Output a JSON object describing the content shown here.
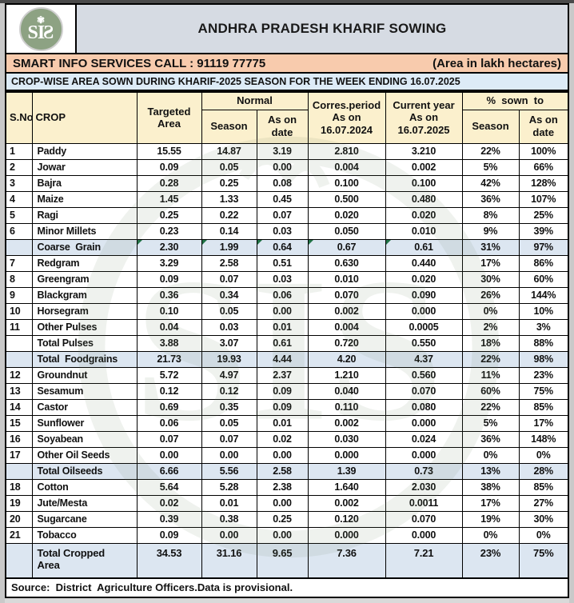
{
  "banner": {
    "title": "ANDHRA PRADESH KHARIF SOWING",
    "logo_text": "SI",
    "logo_text_flipped": "S",
    "logo_flower": "✾"
  },
  "info_bar": {
    "call_text": "SMART INFO SERVICES CALL : 91119 77775",
    "unit_text": "(Area in lakh hectares)"
  },
  "subtitle": "CROP-WISE AREA SOWN DURING KHARIF-2025 SEASON FOR THE WEEK ENDING 16.07.2025",
  "colors": {
    "banner_bg": "#d6dbe3",
    "info_bar_bg": "#f8cbad",
    "subtitle_bg": "#ddebf7",
    "header_bg": "#fbf0cd",
    "summary_row_bg": "#dce6f1",
    "logo_green": "#8da283",
    "flag_green": "#217346"
  },
  "table": {
    "headers": {
      "sno": "S.No",
      "crop": "CROP",
      "targeted": "Targeted\nArea",
      "normal": "Normal",
      "season": "Season",
      "as_on_date": "As on\ndate",
      "corres": "Corres.period\nAs on\n16.07.2024",
      "current": "Current year\nAs on\n16.07.2025",
      "pct_sown": "%  sown  to"
    },
    "rows": [
      {
        "sno": "1",
        "crop": "Paddy",
        "style": "data",
        "v": [
          "15.55",
          "14.87",
          "3.19",
          "2.810",
          "3.210",
          "22%",
          "100%"
        ]
      },
      {
        "sno": "2",
        "crop": "Jowar",
        "style": "data",
        "v": [
          "0.09",
          "0.05",
          "0.00",
          "0.004",
          "0.002",
          "5%",
          "66%"
        ]
      },
      {
        "sno": "3",
        "crop": "Bajra",
        "style": "data",
        "v": [
          "0.28",
          "0.25",
          "0.08",
          "0.100",
          "0.100",
          "42%",
          "128%"
        ]
      },
      {
        "sno": "4",
        "crop": "Maize",
        "style": "data",
        "v": [
          "1.45",
          "1.33",
          "0.45",
          "0.500",
          "0.480",
          "36%",
          "107%"
        ]
      },
      {
        "sno": "5",
        "crop": "Ragi",
        "style": "data",
        "v": [
          "0.25",
          "0.22",
          "0.07",
          "0.020",
          "0.020",
          "8%",
          "25%"
        ]
      },
      {
        "sno": "6",
        "crop": "Minor Millets",
        "style": "data",
        "v": [
          "0.23",
          "0.14",
          "0.03",
          "0.050",
          "0.010",
          "9%",
          "39%"
        ]
      },
      {
        "sno": "",
        "crop": "Coarse  Grain",
        "style": "blue",
        "tri": true,
        "v": [
          "2.30",
          "1.99",
          "0.64",
          "0.67",
          "0.61",
          "31%",
          "97%"
        ]
      },
      {
        "sno": "7",
        "crop": "Redgram",
        "style": "data",
        "v": [
          "3.29",
          "2.58",
          "0.51",
          "0.630",
          "0.440",
          "17%",
          "86%"
        ]
      },
      {
        "sno": "8",
        "crop": "Greengram",
        "style": "data",
        "v": [
          "0.09",
          "0.07",
          "0.03",
          "0.010",
          "0.020",
          "30%",
          "60%"
        ]
      },
      {
        "sno": "9",
        "crop": "Blackgram",
        "style": "data",
        "v": [
          "0.36",
          "0.34",
          "0.06",
          "0.070",
          "0.090",
          "26%",
          "144%"
        ]
      },
      {
        "sno": "10",
        "crop": "Horsegram",
        "style": "data",
        "v": [
          "0.10",
          "0.05",
          "0.00",
          "0.002",
          "0.000",
          "0%",
          "10%"
        ]
      },
      {
        "sno": "11",
        "crop": "Other Pulses",
        "style": "data",
        "v": [
          "0.04",
          "0.03",
          "0.01",
          "0.004",
          "0.0005",
          "2%",
          "3%"
        ]
      },
      {
        "sno": "",
        "crop": "Total Pulses",
        "style": "bold",
        "v": [
          "3.88",
          "3.07",
          "0.61",
          "0.720",
          "0.550",
          "18%",
          "88%"
        ]
      },
      {
        "sno": "",
        "crop": "Total  Foodgrains",
        "style": "blue",
        "v": [
          "21.73",
          "19.93",
          "4.44",
          "4.20",
          "4.37",
          "22%",
          "98%"
        ]
      },
      {
        "sno": "12",
        "crop": "Groundnut",
        "style": "data",
        "v": [
          "5.72",
          "4.97",
          "2.37",
          "1.210",
          "0.560",
          "11%",
          "23%"
        ]
      },
      {
        "sno": "13",
        "crop": "Sesamum",
        "style": "data",
        "v": [
          "0.12",
          "0.12",
          "0.09",
          "0.040",
          "0.070",
          "60%",
          "75%"
        ]
      },
      {
        "sno": "14",
        "crop": "Castor",
        "style": "data",
        "v": [
          "0.69",
          "0.35",
          "0.09",
          "0.110",
          "0.080",
          "22%",
          "85%"
        ]
      },
      {
        "sno": "15",
        "crop": "Sunflower",
        "style": "data",
        "v": [
          "0.06",
          "0.05",
          "0.01",
          "0.002",
          "0.000",
          "5%",
          "17%"
        ]
      },
      {
        "sno": "16",
        "crop": "Soyabean",
        "style": "data",
        "v": [
          "0.07",
          "0.07",
          "0.02",
          "0.030",
          "0.024",
          "36%",
          "148%"
        ]
      },
      {
        "sno": "17",
        "crop": "Other Oil Seeds",
        "style": "data",
        "v": [
          "0.00",
          "0.00",
          "0.00",
          "0.000",
          "0.000",
          "0%",
          "0%"
        ]
      },
      {
        "sno": "",
        "crop": "Total Oilseeds",
        "style": "blue",
        "v": [
          "6.66",
          "5.56",
          "2.58",
          "1.39",
          "0.73",
          "13%",
          "28%"
        ]
      },
      {
        "sno": "18",
        "crop": "Cotton",
        "style": "data",
        "v": [
          "5.64",
          "5.28",
          "2.38",
          "1.640",
          "2.030",
          "38%",
          "85%"
        ]
      },
      {
        "sno": "19",
        "crop": "Jute/Mesta",
        "style": "data",
        "v": [
          "0.02",
          "0.01",
          "0.00",
          "0.002",
          "0.0011",
          "17%",
          "27%"
        ]
      },
      {
        "sno": "20",
        "crop": "Sugarcane",
        "style": "data",
        "v": [
          "0.39",
          "0.38",
          "0.25",
          "0.120",
          "0.070",
          "19%",
          "30%"
        ]
      },
      {
        "sno": "21",
        "crop": "Tobacco",
        "style": "data",
        "v": [
          "0.09",
          "0.00",
          "0.00",
          "0.000",
          "0.000",
          "0%",
          "0%"
        ]
      },
      {
        "sno": "",
        "crop": "Total Cropped\nArea",
        "style": "total",
        "v": [
          "34.53",
          "31.16",
          "9.65",
          "7.36",
          "7.21",
          "23%",
          "75%"
        ]
      }
    ],
    "source": "Source:  District  Agriculture Officers.Data is provisional."
  }
}
